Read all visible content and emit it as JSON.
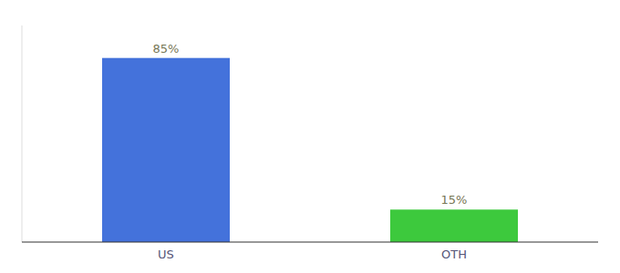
{
  "chart_data": {
    "type": "bar",
    "categories": [
      "US",
      "OTH"
    ],
    "values": [
      85,
      15
    ],
    "value_labels": [
      "85%",
      "15%"
    ],
    "colors": [
      "#4472db",
      "#3dc93d"
    ],
    "ylim": [
      0,
      100
    ],
    "data_labels": true,
    "tick_labels": "x"
  }
}
